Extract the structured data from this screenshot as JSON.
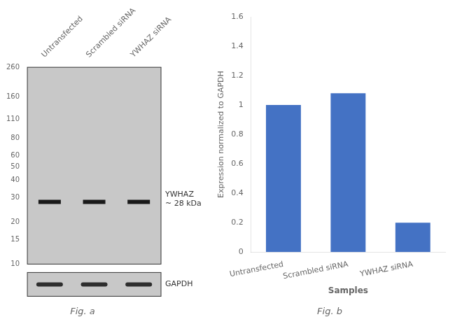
{
  "chart_data": [
    {
      "type": "western_blot",
      "title": "Fig. a",
      "categories": [
        "Untransfected",
        "Scrambled siRNA",
        "YWHAZ siRNA"
      ],
      "values": [
        28,
        28,
        28
      ],
      "log": "y",
      "ylim": [
        10,
        260
      ],
      "yticks": [
        260,
        160,
        110,
        80,
        60,
        50,
        40,
        30,
        20,
        15,
        10
      ],
      "annotations": [
        "YWHAZ\n~ 28 kDa",
        "GAPDH"
      ],
      "color": "#c8c8c8",
      "grid": false
    },
    {
      "type": "bar",
      "title": "Fig. b",
      "categories": [
        "Untransfected",
        "Scrambled siRNA",
        "YWHAZ siRNA"
      ],
      "values": [
        1.0,
        1.08,
        0.2
      ],
      "color": "#4472C4",
      "xlabel": "Samples",
      "ylabel": "Expression normalized to GAPDH",
      "ylim": [
        0,
        1.6
      ],
      "yticks": [
        0,
        0.2,
        0.4,
        0.6,
        0.8,
        1.0,
        1.2,
        1.4,
        1.6
      ],
      "grid": false
    }
  ]
}
